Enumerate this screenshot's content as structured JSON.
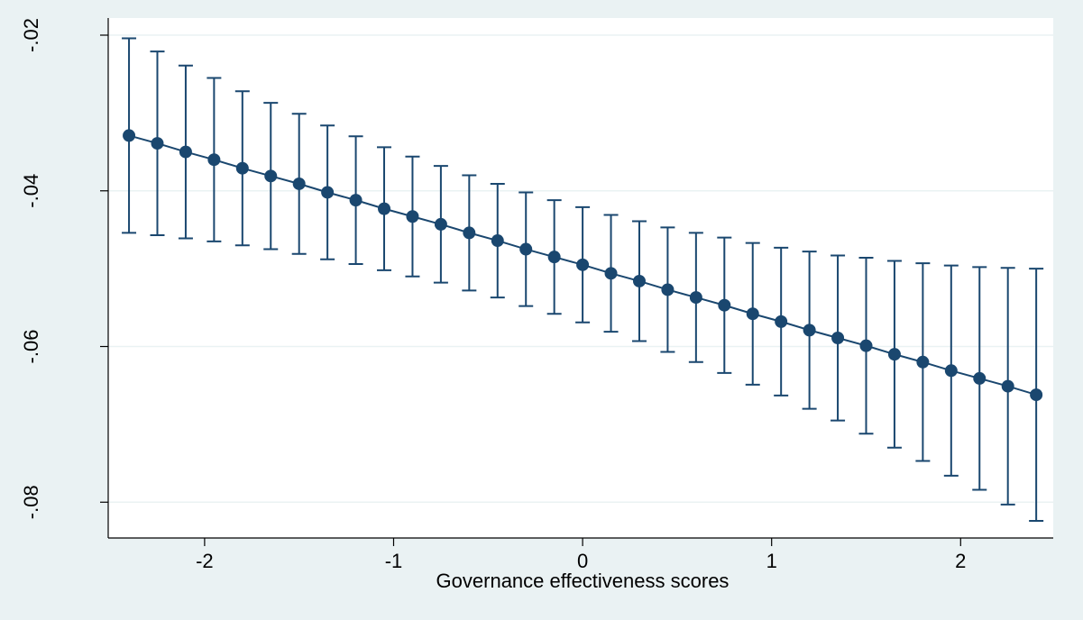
{
  "chart_data": {
    "type": "errorbar-line",
    "x_label": "Governance effectiveness scores",
    "x": [
      -2.4,
      -2.25,
      -2.1,
      -1.95,
      -1.8,
      -1.65,
      -1.5,
      -1.35,
      -1.2,
      -1.05,
      -0.9,
      -0.75,
      -0.6,
      -0.45,
      -0.3,
      -0.15,
      0,
      0.15,
      0.3,
      0.45,
      0.6,
      0.75,
      0.9,
      1.05,
      1.2,
      1.35,
      1.5,
      1.65,
      1.8,
      1.95,
      2.1,
      2.25,
      2.4
    ],
    "series": [
      {
        "color": "#1a476f",
        "values": [
          -0.0329,
          -0.0339,
          -0.035,
          -0.036,
          -0.0371,
          -0.0381,
          -0.0391,
          -0.0402,
          -0.0412,
          -0.0423,
          -0.0433,
          -0.0443,
          -0.0454,
          -0.0464,
          -0.0475,
          -0.0485,
          -0.0495,
          -0.0506,
          -0.0516,
          -0.0527,
          -0.0537,
          -0.0547,
          -0.0558,
          -0.0568,
          -0.0579,
          -0.0589,
          -0.0599,
          -0.061,
          -0.062,
          -0.0631,
          -0.0641,
          -0.0651,
          -0.0662
        ],
        "lower": [
          -0.0454,
          -0.0457,
          -0.0461,
          -0.0465,
          -0.047,
          -0.0475,
          -0.0481,
          -0.0488,
          -0.0494,
          -0.0502,
          -0.051,
          -0.0518,
          -0.0528,
          -0.0537,
          -0.0548,
          -0.0558,
          -0.0569,
          -0.0581,
          -0.0593,
          -0.0607,
          -0.062,
          -0.0634,
          -0.0649,
          -0.0663,
          -0.068,
          -0.0695,
          -0.0712,
          -0.073,
          -0.0747,
          -0.0766,
          -0.0784,
          -0.0803,
          -0.0824
        ],
        "upper": [
          -0.0204,
          -0.0221,
          -0.0239,
          -0.0255,
          -0.0272,
          -0.0287,
          -0.0301,
          -0.0316,
          -0.033,
          -0.0344,
          -0.0356,
          -0.0368,
          -0.038,
          -0.0391,
          -0.0402,
          -0.0412,
          -0.0421,
          -0.0431,
          -0.0439,
          -0.0447,
          -0.0454,
          -0.046,
          -0.0467,
          -0.0473,
          -0.0478,
          -0.0483,
          -0.0486,
          -0.049,
          -0.0493,
          -0.0496,
          -0.0498,
          -0.0499,
          -0.05
        ]
      }
    ],
    "xlim": [
      -2.51,
      2.49
    ],
    "xticks": [
      -2,
      -1,
      0,
      1,
      2
    ],
    "ylim": [
      -0.0846,
      -0.0178
    ],
    "yticks": [
      {
        "value": -0.08,
        "label": "-.08"
      },
      {
        "value": -0.06,
        "label": "-.06"
      },
      {
        "value": -0.04,
        "label": "-.04"
      },
      {
        "value": -0.02,
        "label": "-.02"
      }
    ],
    "grid": true
  }
}
